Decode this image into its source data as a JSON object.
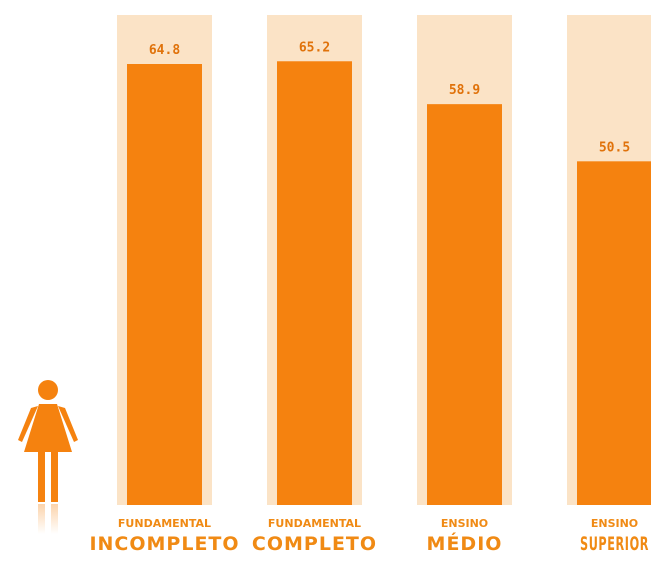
{
  "colors": {
    "bar": "#f5820f",
    "track": "#fbe3c6",
    "value_text": "#e0720a",
    "label_text": "#f08a14",
    "figure": "#f5820f",
    "background": "#ffffff"
  },
  "icons": {
    "figure": "woman-icon"
  },
  "chart_data": {
    "type": "bar",
    "title": "",
    "xlabel": "",
    "ylabel": "",
    "ylim": [
      0,
      72
    ],
    "categories": [
      {
        "line1": "FUNDAMENTAL",
        "line2": "INCOMPLETO"
      },
      {
        "line1": "FUNDAMENTAL",
        "line2": "COMPLETO"
      },
      {
        "line1": "ENSINO",
        "line2": "MÉDIO"
      },
      {
        "line1": "ENSINO",
        "line2": "SUPERIOR"
      }
    ],
    "values": [
      64.8,
      65.2,
      58.9,
      50.5
    ],
    "value_labels": [
      "64.8",
      "65.2",
      "58.9",
      "50.5"
    ]
  }
}
